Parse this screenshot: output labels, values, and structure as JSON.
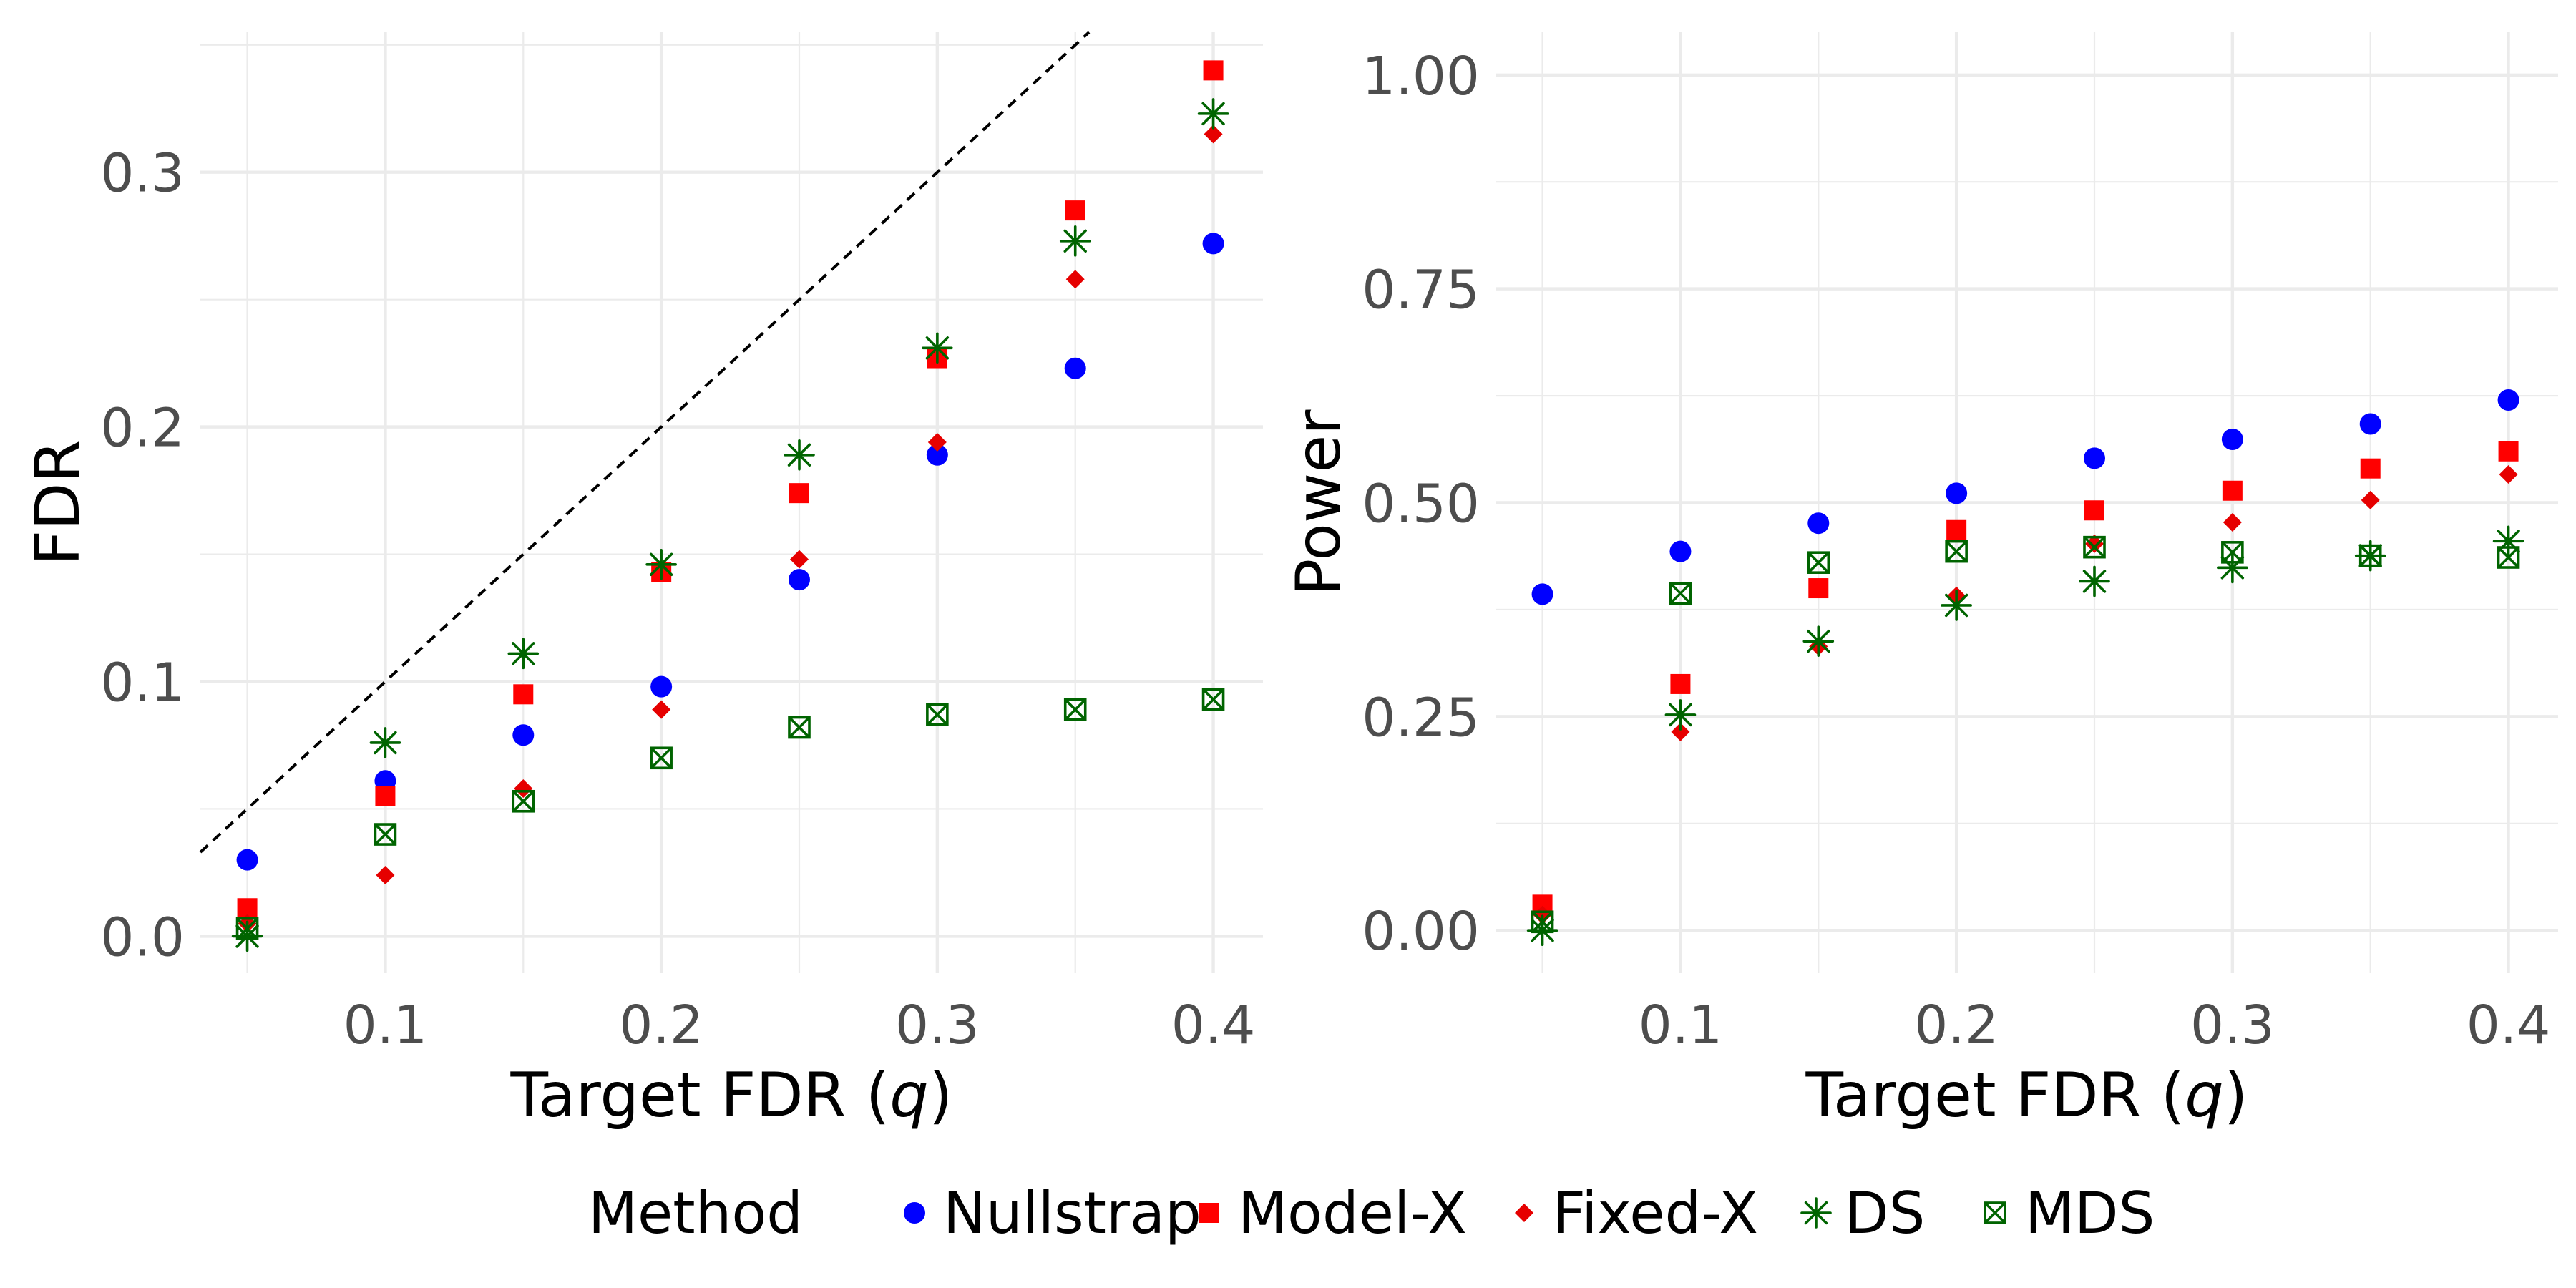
{
  "colors": {
    "Nullstrap": "#0000ff",
    "Model-X": "#ff0000",
    "Fixed-X": "#e60000",
    "DS": "#006400",
    "MDS": "#006400"
  },
  "legend": {
    "title": "Method",
    "entries": [
      {
        "name": "Nullstrap",
        "shape": "circle"
      },
      {
        "name": "Model-X",
        "shape": "square"
      },
      {
        "name": "Fixed-X",
        "shape": "diamond"
      },
      {
        "name": "DS",
        "shape": "asterisk"
      },
      {
        "name": "MDS",
        "shape": "boxed-x"
      }
    ]
  },
  "chart_data": [
    {
      "type": "scatter",
      "title": "",
      "xlabel": "Target FDR",
      "xlabel_symbol": "q",
      "ylabel": "FDR",
      "xlim": [
        0.033,
        0.418
      ],
      "ylim": [
        -0.0145,
        0.355
      ],
      "xticks": [
        0.1,
        0.2,
        0.3,
        0.4
      ],
      "xtick_labels": [
        "0.1",
        "0.2",
        "0.3",
        "0.4"
      ],
      "yticks": [
        0.0,
        0.1,
        0.2,
        0.3
      ],
      "ytick_labels": [
        "0.0",
        "0.1",
        "0.2",
        "0.3"
      ],
      "reference_line": "y = x",
      "x": [
        0.05,
        0.1,
        0.15,
        0.2,
        0.25,
        0.3,
        0.35,
        0.4
      ],
      "series": [
        {
          "name": "Nullstrap",
          "values": [
            0.03,
            0.061,
            0.079,
            0.098,
            0.14,
            0.189,
            0.223,
            0.272
          ]
        },
        {
          "name": "Model-X",
          "values": [
            0.011,
            0.055,
            0.095,
            0.143,
            0.174,
            0.227,
            0.285,
            0.34
          ]
        },
        {
          "name": "Fixed-X",
          "values": [
            0.005,
            0.024,
            0.058,
            0.089,
            0.148,
            0.194,
            0.258,
            0.315
          ]
        },
        {
          "name": "DS",
          "values": [
            0.0,
            0.076,
            0.111,
            0.146,
            0.189,
            0.231,
            0.273,
            0.323
          ]
        },
        {
          "name": "MDS",
          "values": [
            0.003,
            0.04,
            0.053,
            0.07,
            0.082,
            0.087,
            0.089,
            0.093
          ]
        }
      ]
    },
    {
      "type": "scatter",
      "title": "",
      "xlabel": "Target FDR",
      "xlabel_symbol": "q",
      "ylabel": "Power",
      "xlim": [
        0.033,
        0.418
      ],
      "ylim": [
        -0.05,
        1.05
      ],
      "xticks": [
        0.1,
        0.2,
        0.3,
        0.4
      ],
      "xtick_labels": [
        "0.1",
        "0.2",
        "0.3",
        "0.4"
      ],
      "yticks": [
        0.0,
        0.25,
        0.5,
        0.75,
        1.0
      ],
      "ytick_labels": [
        "0.00",
        "0.25",
        "0.50",
        "0.75",
        "1.00"
      ],
      "x": [
        0.05,
        0.1,
        0.15,
        0.2,
        0.25,
        0.3,
        0.35,
        0.4
      ],
      "series": [
        {
          "name": "Nullstrap",
          "values": [
            0.393,
            0.443,
            0.476,
            0.511,
            0.552,
            0.574,
            0.592,
            0.62
          ]
        },
        {
          "name": "Model-X",
          "values": [
            0.03,
            0.288,
            0.4,
            0.468,
            0.491,
            0.514,
            0.54,
            0.56
          ]
        },
        {
          "name": "Fixed-X",
          "values": [
            0.018,
            0.232,
            0.332,
            0.391,
            0.452,
            0.477,
            0.503,
            0.533
          ]
        },
        {
          "name": "DS",
          "values": [
            0.0,
            0.252,
            0.338,
            0.38,
            0.408,
            0.424,
            0.438,
            0.455
          ]
        },
        {
          "name": "MDS",
          "values": [
            0.01,
            0.394,
            0.43,
            0.443,
            0.448,
            0.442,
            0.438,
            0.436
          ]
        }
      ]
    }
  ]
}
